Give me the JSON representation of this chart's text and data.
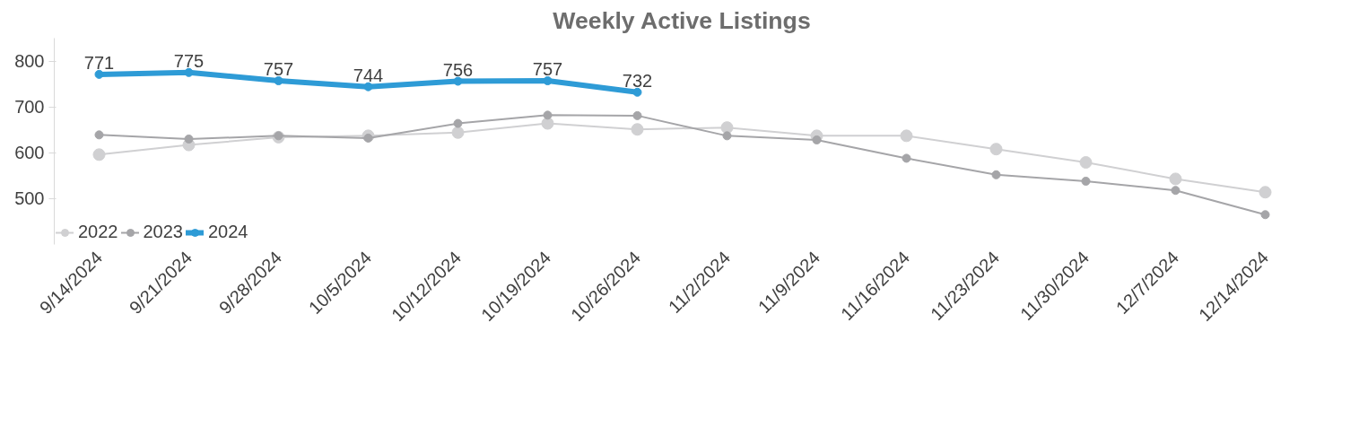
{
  "chart_data": {
    "type": "line",
    "title": "Weekly Active Listings",
    "categories": [
      "9/14/2024",
      "9/21/2024",
      "9/28/2024",
      "10/5/2024",
      "10/12/2024",
      "10/19/2024",
      "10/26/2024",
      "11/2/2024",
      "11/9/2024",
      "11/16/2024",
      "11/23/2024",
      "11/30/2024",
      "12/7/2024",
      "12/14/2024"
    ],
    "series": [
      {
        "name": "2022",
        "color": "#d0d0d2",
        "values": [
          596,
          617,
          634,
          637,
          644,
          664,
          651,
          655,
          637,
          637,
          608,
          579,
          543,
          514
        ]
      },
      {
        "name": "2023",
        "color": "#a5a5a8",
        "values": [
          639,
          630,
          637,
          632,
          664,
          682,
          681,
          637,
          628,
          588,
          552,
          538,
          518,
          465
        ]
      },
      {
        "name": "2024",
        "color": "#2e9bd6",
        "values": [
          771,
          775,
          757,
          744,
          756,
          757,
          732,
          null,
          null,
          null,
          null,
          null,
          null,
          null
        ],
        "value_labels": [
          "771",
          "775",
          "757",
          "744",
          "756",
          "757",
          "732",
          null,
          null,
          null,
          null,
          null,
          null,
          null
        ]
      }
    ],
    "ylim": [
      400,
      850
    ],
    "yticks": [
      500,
      600,
      700,
      800
    ],
    "grid": false,
    "legend": "bottom left",
    "marker": "circle",
    "line_style": "solid"
  }
}
